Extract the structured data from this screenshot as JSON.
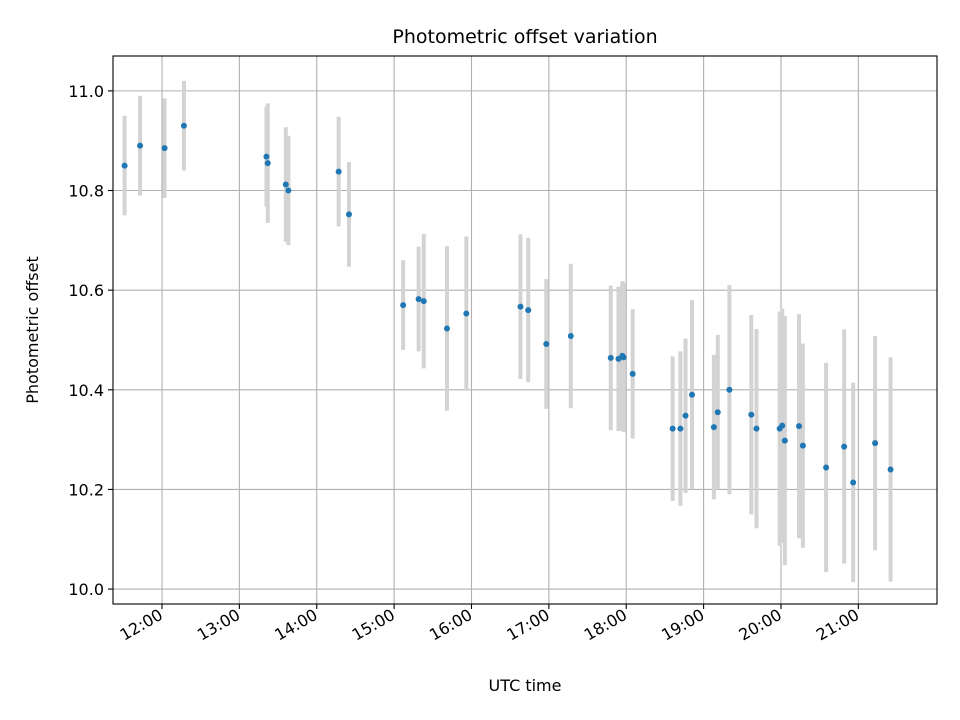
{
  "chart_data": {
    "type": "scatter",
    "title": "Photometric offset variation",
    "xlabel": "UTC time",
    "ylabel": "Photometric offset",
    "xlim": [
      "11:22",
      "22:01"
    ],
    "ylim": [
      9.97,
      11.07
    ],
    "grid": true,
    "x_ticks": [
      "12:00",
      "13:00",
      "14:00",
      "15:00",
      "16:00",
      "17:00",
      "18:00",
      "19:00",
      "20:00",
      "21:00"
    ],
    "y_ticks": [
      "10.0",
      "10.2",
      "10.4",
      "10.6",
      "10.8",
      "11.0"
    ],
    "colors": {
      "point": "#1f77b4",
      "errorbar": "#d3d3d3",
      "grid": "#b0b0b0"
    },
    "series": [
      {
        "x": [
          "11:31",
          "11:43",
          "12:02",
          "12:17",
          "13:21",
          "13:22",
          "13:36",
          "13:38",
          "14:17",
          "14:25",
          "15:07",
          "15:19",
          "15:23",
          "15:41",
          "15:56",
          "16:38",
          "16:44",
          "16:58",
          "17:17",
          "17:48",
          "17:54",
          "17:57",
          "17:58",
          "18:05",
          "18:36",
          "18:42",
          "18:46",
          "18:51",
          "19:08",
          "19:11",
          "19:20",
          "19:37",
          "19:41",
          "19:59",
          "20:01",
          "20:03",
          "20:14",
          "20:17",
          "20:35",
          "20:49",
          "20:56",
          "21:13",
          "21:25"
        ],
        "y": [
          10.85,
          10.89,
          10.885,
          10.93,
          10.868,
          10.855,
          10.812,
          10.8,
          10.838,
          10.752,
          10.57,
          10.582,
          10.578,
          10.523,
          10.553,
          10.567,
          10.56,
          10.492,
          10.508,
          10.464,
          10.462,
          10.468,
          10.465,
          10.432,
          10.322,
          10.322,
          10.348,
          10.39,
          10.325,
          10.355,
          10.4,
          10.35,
          10.322,
          10.322,
          10.328,
          10.298,
          10.327,
          10.288,
          10.244,
          10.286,
          10.214,
          10.293,
          10.24
        ],
        "yerr": [
          0.1,
          0.1,
          0.1,
          0.09,
          0.1,
          0.12,
          0.115,
          0.11,
          0.11,
          0.105,
          0.09,
          0.105,
          0.135,
          0.165,
          0.155,
          0.145,
          0.145,
          0.13,
          0.145,
          0.145,
          0.145,
          0.15,
          0.15,
          0.13,
          0.145,
          0.155,
          0.155,
          0.19,
          0.145,
          0.155,
          0.21,
          0.2,
          0.2,
          0.235,
          0.235,
          0.25,
          0.225,
          0.205,
          0.21,
          0.235,
          0.2,
          0.215,
          0.225
        ]
      }
    ]
  }
}
